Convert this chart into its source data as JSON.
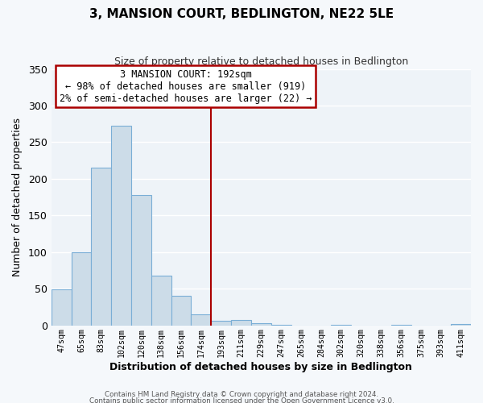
{
  "title": "3, MANSION COURT, BEDLINGTON, NE22 5LE",
  "subtitle": "Size of property relative to detached houses in Bedlington",
  "xlabel": "Distribution of detached houses by size in Bedlington",
  "ylabel": "Number of detached properties",
  "footnote1": "Contains HM Land Registry data © Crown copyright and database right 2024.",
  "footnote2": "Contains public sector information licensed under the Open Government Licence v3.0.",
  "bar_labels": [
    "47sqm",
    "65sqm",
    "83sqm",
    "102sqm",
    "120sqm",
    "138sqm",
    "156sqm",
    "174sqm",
    "193sqm",
    "211sqm",
    "229sqm",
    "247sqm",
    "265sqm",
    "284sqm",
    "302sqm",
    "320sqm",
    "338sqm",
    "356sqm",
    "375sqm",
    "393sqm",
    "411sqm"
  ],
  "bar_values": [
    49,
    100,
    215,
    273,
    178,
    68,
    41,
    15,
    6,
    7,
    3,
    1,
    0,
    0,
    1,
    0,
    0,
    1,
    0,
    0,
    2
  ],
  "bar_color": "#ccdce8",
  "bar_edge_color": "#7aaed6",
  "vline_index": 8,
  "vline_color": "#aa0000",
  "annotation_title": "3 MANSION COURT: 192sqm",
  "annotation_line1": "← 98% of detached houses are smaller (919)",
  "annotation_line2": "2% of semi-detached houses are larger (22) →",
  "annotation_box_edgecolor": "#aa0000",
  "annotation_bg": "#ffffff",
  "ylim": [
    0,
    350
  ],
  "yticks": [
    0,
    50,
    100,
    150,
    200,
    250,
    300,
    350
  ],
  "bg_color": "#f5f8fb",
  "plot_bg": "#eef3f8",
  "grid_color": "#ffffff",
  "title_fontsize": 11,
  "subtitle_fontsize": 9
}
